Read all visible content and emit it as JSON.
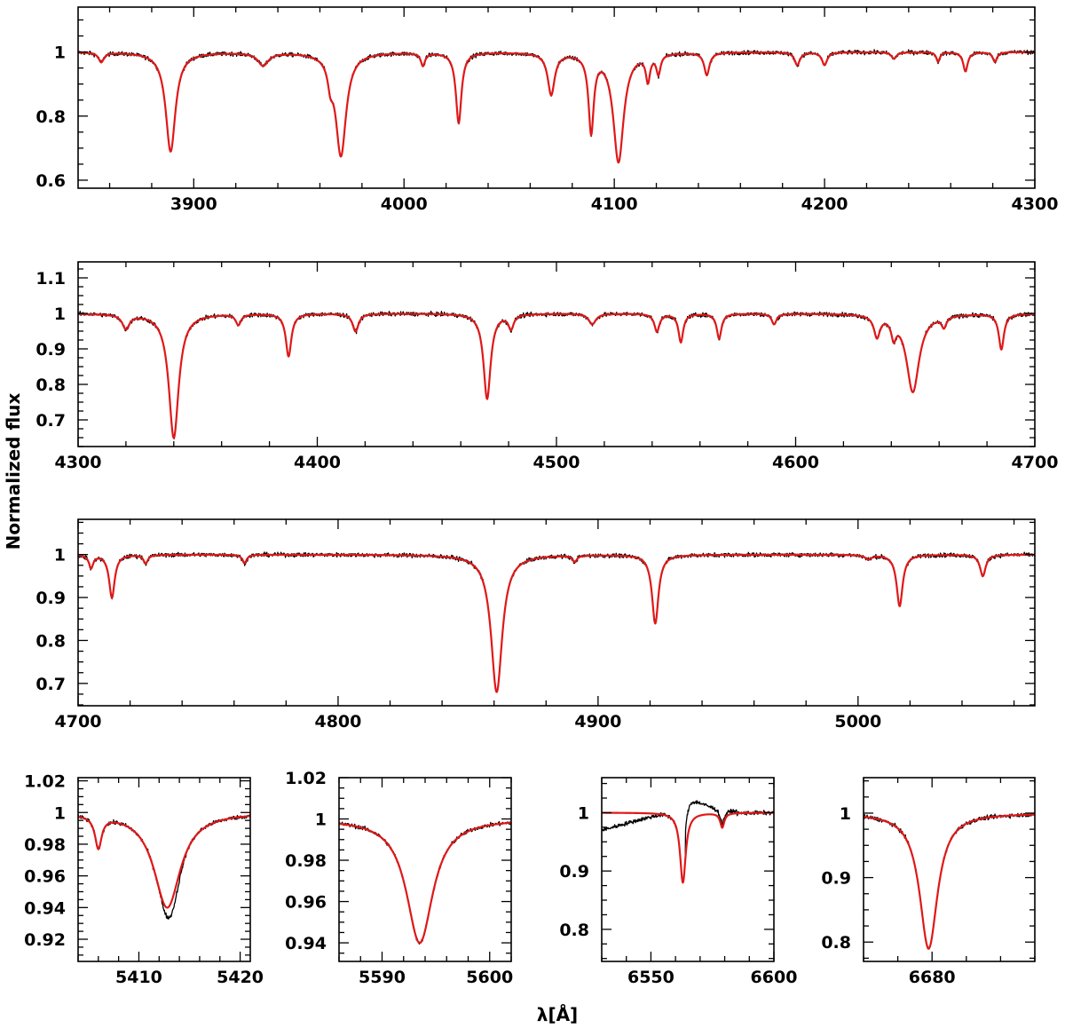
{
  "colors": {
    "observed": "#000000",
    "model": "#e01818",
    "frame": "#000000"
  },
  "figure": {
    "ylabel": "Normalized flux",
    "xlabel": "λ[Å]"
  },
  "chart_data": [
    {
      "type": "line",
      "xlim": [
        3845,
        4300
      ],
      "ylim": [
        0.575,
        1.14
      ],
      "xticks": [
        3900,
        4000,
        4100,
        4200,
        4300
      ],
      "xtick_labels": [
        "3900",
        "4000",
        "4100",
        "4200",
        "4300"
      ],
      "yticks": [
        0.6,
        0.8,
        1.0
      ],
      "ytick_labels": [
        "0.6",
        "0.8",
        "1"
      ],
      "minor_x": 20,
      "minor_y": 0.05,
      "lines": [
        {
          "c": 3889,
          "d": 0.31,
          "w": 2.8
        },
        {
          "c": 3970,
          "d": 0.32,
          "w": 3.0
        },
        {
          "c": 3965,
          "d": 0.06,
          "w": 1.5
        },
        {
          "c": 4026,
          "d": 0.22,
          "w": 1.6
        },
        {
          "c": 4009,
          "d": 0.04,
          "w": 1.2
        },
        {
          "c": 4070,
          "d": 0.13,
          "w": 2.0
        },
        {
          "c": 4089,
          "d": 0.24,
          "w": 1.5
        },
        {
          "c": 4102,
          "d": 0.34,
          "w": 3.0
        },
        {
          "c": 4116,
          "d": 0.08,
          "w": 1.2
        },
        {
          "c": 4121,
          "d": 0.06,
          "w": 1.2
        },
        {
          "c": 4144,
          "d": 0.07,
          "w": 1.5
        },
        {
          "c": 4187,
          "d": 0.04,
          "w": 1.5
        },
        {
          "c": 4200,
          "d": 0.04,
          "w": 1.5
        },
        {
          "c": 4267,
          "d": 0.06,
          "w": 1.3
        },
        {
          "c": 4254,
          "d": 0.03,
          "w": 1.0
        },
        {
          "c": 4281,
          "d": 0.03,
          "w": 1.2
        },
        {
          "c": 3933,
          "d": 0.04,
          "w": 3.0
        },
        {
          "c": 3856,
          "d": 0.03,
          "w": 1.5
        },
        {
          "c": 4233,
          "d": 0.02,
          "w": 1.5
        }
      ]
    },
    {
      "type": "line",
      "xlim": [
        4300,
        4700
      ],
      "ylim": [
        0.625,
        1.145
      ],
      "xticks": [
        4300,
        4400,
        4500,
        4600,
        4700
      ],
      "xtick_labels": [
        "4300",
        "4400",
        "4500",
        "4600",
        "4700"
      ],
      "yticks": [
        0.7,
        0.8,
        0.9,
        1.0,
        1.1
      ],
      "ytick_labels": [
        "0.7",
        "0.8",
        "0.9",
        "1",
        "1.1"
      ],
      "minor_x": 20,
      "minor_y": 0.025,
      "lines": [
        {
          "c": 4340,
          "d": 0.35,
          "w": 2.5
        },
        {
          "c": 4388,
          "d": 0.12,
          "w": 1.4
        },
        {
          "c": 4471,
          "d": 0.24,
          "w": 1.8
        },
        {
          "c": 4649,
          "d": 0.22,
          "w": 3.2
        },
        {
          "c": 4686,
          "d": 0.1,
          "w": 1.3
        },
        {
          "c": 4542,
          "d": 0.05,
          "w": 1.3
        },
        {
          "c": 4552,
          "d": 0.08,
          "w": 1.2
        },
        {
          "c": 4568,
          "d": 0.07,
          "w": 1.2
        },
        {
          "c": 4416,
          "d": 0.05,
          "w": 1.5
        },
        {
          "c": 4320,
          "d": 0.04,
          "w": 1.8
        },
        {
          "c": 4367,
          "d": 0.03,
          "w": 1.3
        },
        {
          "c": 4481,
          "d": 0.04,
          "w": 1.3
        },
        {
          "c": 4634,
          "d": 0.06,
          "w": 1.5
        },
        {
          "c": 4641,
          "d": 0.05,
          "w": 1.2
        },
        {
          "c": 4515,
          "d": 0.03,
          "w": 1.8
        },
        {
          "c": 4591,
          "d": 0.03,
          "w": 1.2
        },
        {
          "c": 4662,
          "d": 0.03,
          "w": 1.2
        }
      ]
    },
    {
      "type": "line",
      "xlim": [
        4700,
        5068
      ],
      "ylim": [
        0.648,
        1.082
      ],
      "xticks": [
        4700,
        4800,
        4900,
        5000
      ],
      "xtick_labels": [
        "4700",
        "4800",
        "4900",
        "5000"
      ],
      "yticks": [
        0.7,
        0.8,
        0.9,
        1.0
      ],
      "ytick_labels": [
        "0.7",
        "0.8",
        "0.9",
        "1"
      ],
      "minor_x": 20,
      "minor_y": 0.025,
      "lines": [
        {
          "c": 4861,
          "d": 0.32,
          "w": 2.6
        },
        {
          "c": 4922,
          "d": 0.16,
          "w": 1.5
        },
        {
          "c": 5016,
          "d": 0.12,
          "w": 1.4
        },
        {
          "c": 4713,
          "d": 0.1,
          "w": 1.3
        },
        {
          "c": 5048,
          "d": 0.05,
          "w": 1.3
        },
        {
          "c": 4705,
          "d": 0.03,
          "w": 1.0
        },
        {
          "c": 4726,
          "d": 0.02,
          "w": 1.0
        },
        {
          "c": 4764,
          "d": 0.02,
          "w": 1.0
        },
        {
          "c": 4891,
          "d": 0.015,
          "w": 1.0
        },
        {
          "c": 5004,
          "d": 0.01,
          "w": 1.5
        }
      ]
    },
    {
      "type": "line",
      "xlim": [
        5404,
        5421
      ],
      "ylim": [
        0.906,
        1.022
      ],
      "xticks": [
        5410,
        5420
      ],
      "xtick_labels": [
        "5410",
        "5420"
      ],
      "yticks": [
        0.92,
        0.94,
        0.96,
        0.98,
        1.0,
        1.02
      ],
      "ytick_labels": [
        "0.92",
        "0.94",
        "0.96",
        "0.98",
        "1",
        "1.02"
      ],
      "minor_x": 2,
      "minor_y": 0.005,
      "lines": [
        {
          "c": 5412.8,
          "d": 0.06,
          "w": 1.6
        },
        {
          "c": 5406.0,
          "d": 0.02,
          "w": 0.4
        }
      ]
    },
    {
      "type": "line",
      "xlim": [
        5586,
        5602
      ],
      "ylim": [
        0.931,
        1.02
      ],
      "xticks": [
        5590,
        5600
      ],
      "xtick_labels": [
        "5590",
        "5600"
      ],
      "yticks": [
        0.94,
        0.96,
        0.98,
        1.0,
        1.02
      ],
      "ytick_labels": [
        "0.94",
        "0.96",
        "0.98",
        "1",
        "1.02"
      ],
      "minor_x": 2,
      "minor_y": 0.005,
      "lines": [
        {
          "c": 5593.5,
          "d": 0.06,
          "w": 1.5
        }
      ]
    },
    {
      "type": "line",
      "xlim": [
        6530,
        6600
      ],
      "ylim": [
        0.745,
        1.06
      ],
      "xticks": [
        6550,
        6600
      ],
      "xtick_labels": [
        "6550",
        "6600"
      ],
      "yticks": [
        0.8,
        0.9,
        1.0
      ],
      "ytick_labels": [
        "0.8",
        "0.9",
        "1"
      ],
      "minor_x": 10,
      "minor_y": 0.025,
      "lines": [
        {
          "c": 6563,
          "d": 0.12,
          "w": 1.4
        },
        {
          "c": 6579,
          "d": 0.025,
          "w": 1.0
        }
      ]
    },
    {
      "type": "line",
      "xlim": [
        6670,
        6695
      ],
      "ylim": [
        0.77,
        1.055
      ],
      "xticks": [
        6680
      ],
      "xtick_labels": [
        "6680"
      ],
      "yticks": [
        0.8,
        0.9,
        1.0
      ],
      "ytick_labels": [
        "0.8",
        "0.9",
        "1"
      ],
      "minor_x": 5,
      "minor_y": 0.025,
      "lines": [
        {
          "c": 6679.5,
          "d": 0.21,
          "w": 1.6
        }
      ]
    }
  ]
}
